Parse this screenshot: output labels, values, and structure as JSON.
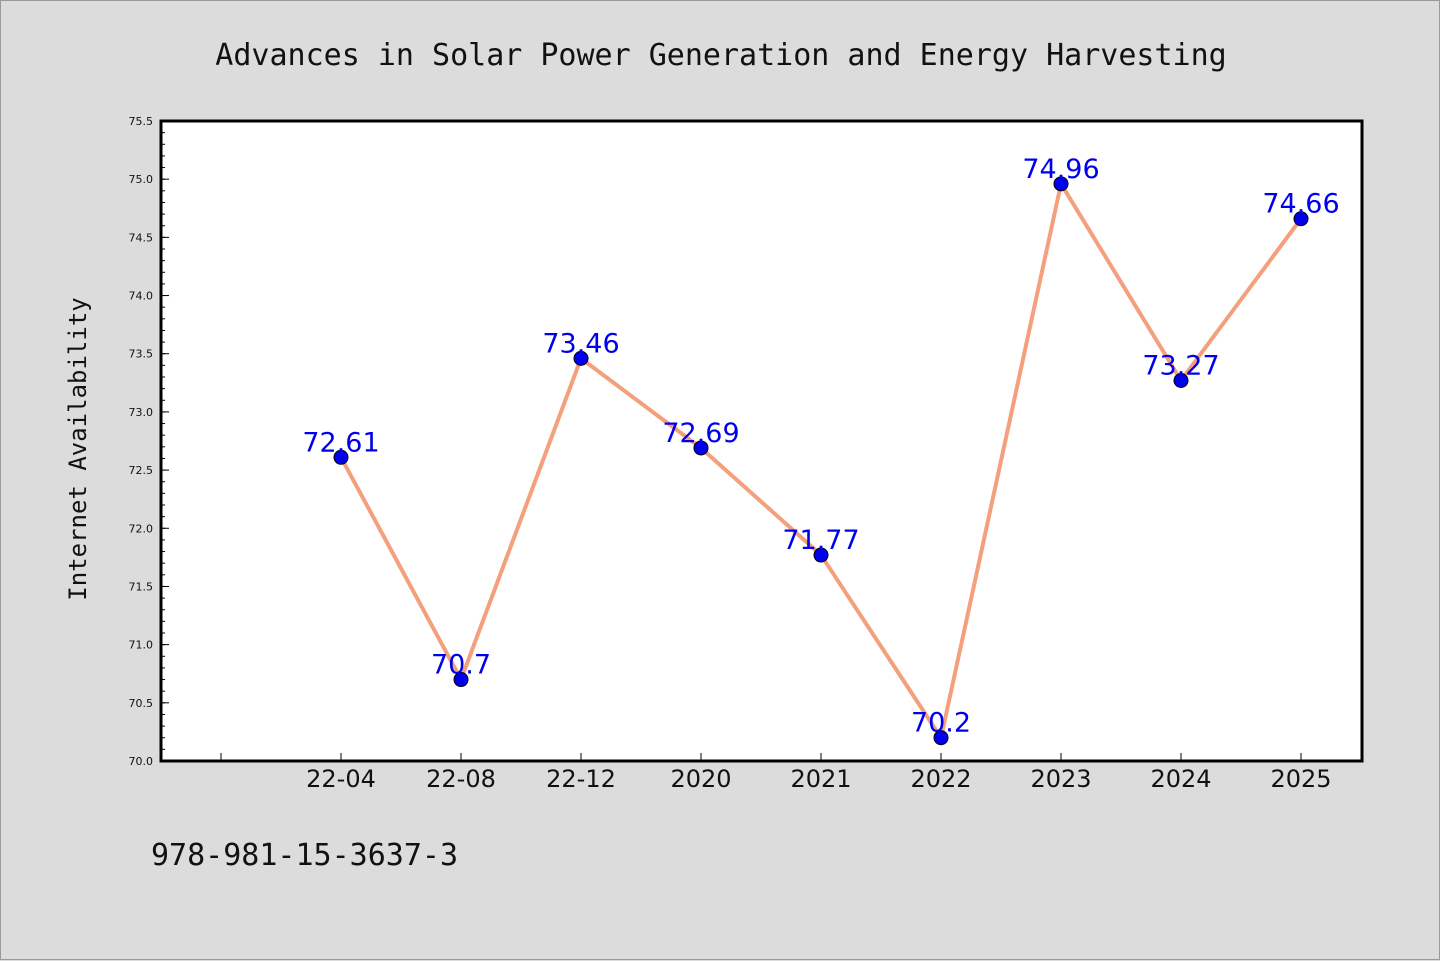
{
  "chart_data": {
    "type": "line",
    "title": "Advances in Solar Power Generation and Energy Harvesting",
    "ylabel": "Internet Availability",
    "categories": [
      "22-04",
      "22-08",
      "22-12",
      "2020",
      "2021",
      "2022",
      "2023",
      "2024",
      "2025"
    ],
    "values": [
      72.61,
      70.7,
      73.46,
      72.69,
      71.77,
      70.2,
      74.96,
      73.27,
      74.66
    ],
    "data_labels": [
      "72.61",
      "70.7",
      "73.46",
      "72.69",
      "71.77",
      "70.2",
      "74.96",
      "73.27",
      "74.66"
    ],
    "ylim": [
      70.0,
      75.5
    ],
    "yticks": [
      "70.0",
      "70.5",
      "71.0",
      "71.5",
      "72.0",
      "72.5",
      "73.0",
      "73.5",
      "74.0",
      "74.5",
      "75.0",
      "75.5"
    ],
    "grid": false,
    "line_color": "#f4a07c",
    "marker_color": "#0000ee",
    "label_color": "#0000ee"
  },
  "footer_text": "978-981-15-3637-3"
}
